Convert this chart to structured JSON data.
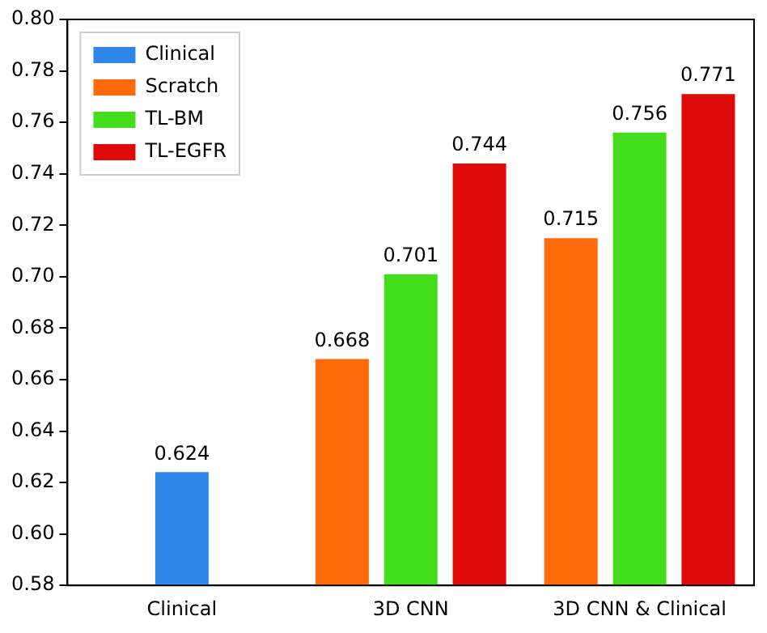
{
  "chart_data": {
    "type": "bar",
    "categories": [
      "Clinical",
      "3D CNN",
      "3D CNN & Clinical"
    ],
    "series": [
      {
        "name": "Clinical",
        "color": "#2e86e8",
        "values": [
          0.624,
          null,
          null
        ]
      },
      {
        "name": "Scratch",
        "color": "#ff6a0a",
        "values": [
          null,
          0.668,
          0.715
        ]
      },
      {
        "name": "TL-BM",
        "color": "#44dd1c",
        "values": [
          null,
          0.701,
          0.756
        ]
      },
      {
        "name": "TL-EGFR",
        "color": "#dd0a0a",
        "values": [
          null,
          0.744,
          0.771
        ]
      }
    ],
    "ylim": [
      0.58,
      0.8
    ],
    "yticks": [
      0.58,
      {
        "value": 0.6,
        "label": "0.60"
      },
      0.62,
      0.64,
      0.66,
      0.68,
      {
        "value": 0.7,
        "label": "0.70"
      },
      0.72,
      0.74,
      0.76,
      0.78,
      {
        "value": 0.8,
        "label": "0.80"
      }
    ],
    "data_labels": true,
    "legend": "top left",
    "grid": false
  }
}
